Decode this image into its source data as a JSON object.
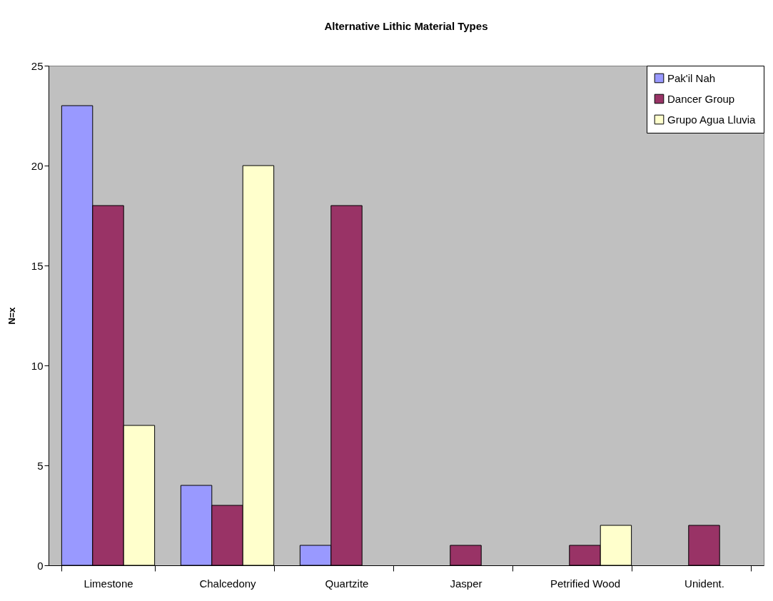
{
  "chart_data": {
    "type": "bar",
    "title": "Alternative Lithic Material Types",
    "ylabel": "N=x",
    "categories": [
      "Limestone",
      "Chalcedony",
      "Quartzite",
      "Jasper",
      "Petrified Wood",
      "Unident."
    ],
    "series": [
      {
        "name": "Pak'il Nah",
        "color": "#9999ff",
        "values": [
          23,
          4,
          1,
          null,
          null,
          null
        ]
      },
      {
        "name": "Dancer Group",
        "color": "#993366",
        "values": [
          18,
          3,
          18,
          1,
          1,
          2
        ]
      },
      {
        "name": "Grupo Agua Lluvia",
        "color": "#ffffcc",
        "values": [
          7,
          20,
          null,
          null,
          2,
          null
        ]
      }
    ],
    "ylim": [
      0,
      25
    ],
    "yticks": [
      0,
      5,
      10,
      15,
      20,
      25
    ],
    "grid": false,
    "legend": "top right"
  }
}
